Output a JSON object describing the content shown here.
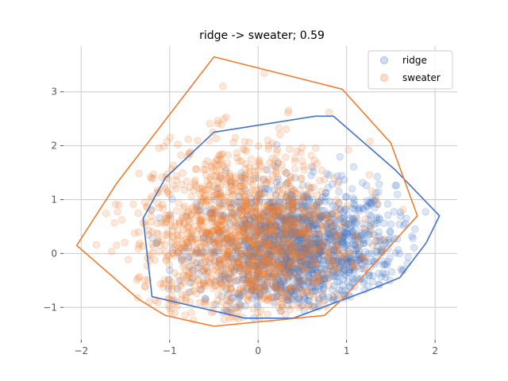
{
  "chart_data": {
    "type": "scatter",
    "title": "ridge -> sweater; 0.59",
    "xlabel": "",
    "ylabel": "",
    "xlim": [
      -2.2,
      2.25
    ],
    "ylim": [
      -1.6,
      3.85
    ],
    "xticks": [
      -2,
      -1,
      0,
      1,
      2
    ],
    "yticks": [
      -1,
      0,
      1,
      2,
      3
    ],
    "xtick_labels": [
      "−2",
      "−1",
      "0",
      "1",
      "2"
    ],
    "ytick_labels": [
      "−1",
      "0",
      "1",
      "2",
      "3"
    ],
    "grid": true,
    "legend_position": "top-right",
    "series": [
      {
        "name": "ridge",
        "color": "#4472c4",
        "point_count": 1500,
        "center": [
          0.45,
          0.05
        ],
        "spread": [
          0.55,
          0.6
        ],
        "hull": [
          [
            -0.5,
            2.25
          ],
          [
            0.65,
            2.55
          ],
          [
            0.85,
            2.55
          ],
          [
            1.55,
            1.55
          ],
          [
            2.05,
            0.7
          ],
          [
            1.9,
            0.2
          ],
          [
            1.6,
            -0.45
          ],
          [
            1.3,
            -0.65
          ],
          [
            0.4,
            -1.2
          ],
          [
            -0.15,
            -1.2
          ],
          [
            -1.2,
            -0.8
          ],
          [
            -1.3,
            0.65
          ],
          [
            -1.05,
            1.4
          ]
        ]
      },
      {
        "name": "sweater",
        "color": "#ed7d31",
        "point_count": 1500,
        "center": [
          -0.15,
          0.3
        ],
        "spread": [
          0.6,
          0.85
        ],
        "hull": [
          [
            -0.5,
            3.65
          ],
          [
            0.95,
            3.05
          ],
          [
            1.5,
            2.05
          ],
          [
            1.8,
            0.7
          ],
          [
            0.95,
            -0.85
          ],
          [
            0.75,
            -1.15
          ],
          [
            -0.5,
            -1.35
          ],
          [
            -1.05,
            -1.15
          ],
          [
            -1.35,
            -0.85
          ],
          [
            -2.05,
            0.15
          ],
          [
            -1.6,
            1.3
          ]
        ]
      }
    ]
  }
}
